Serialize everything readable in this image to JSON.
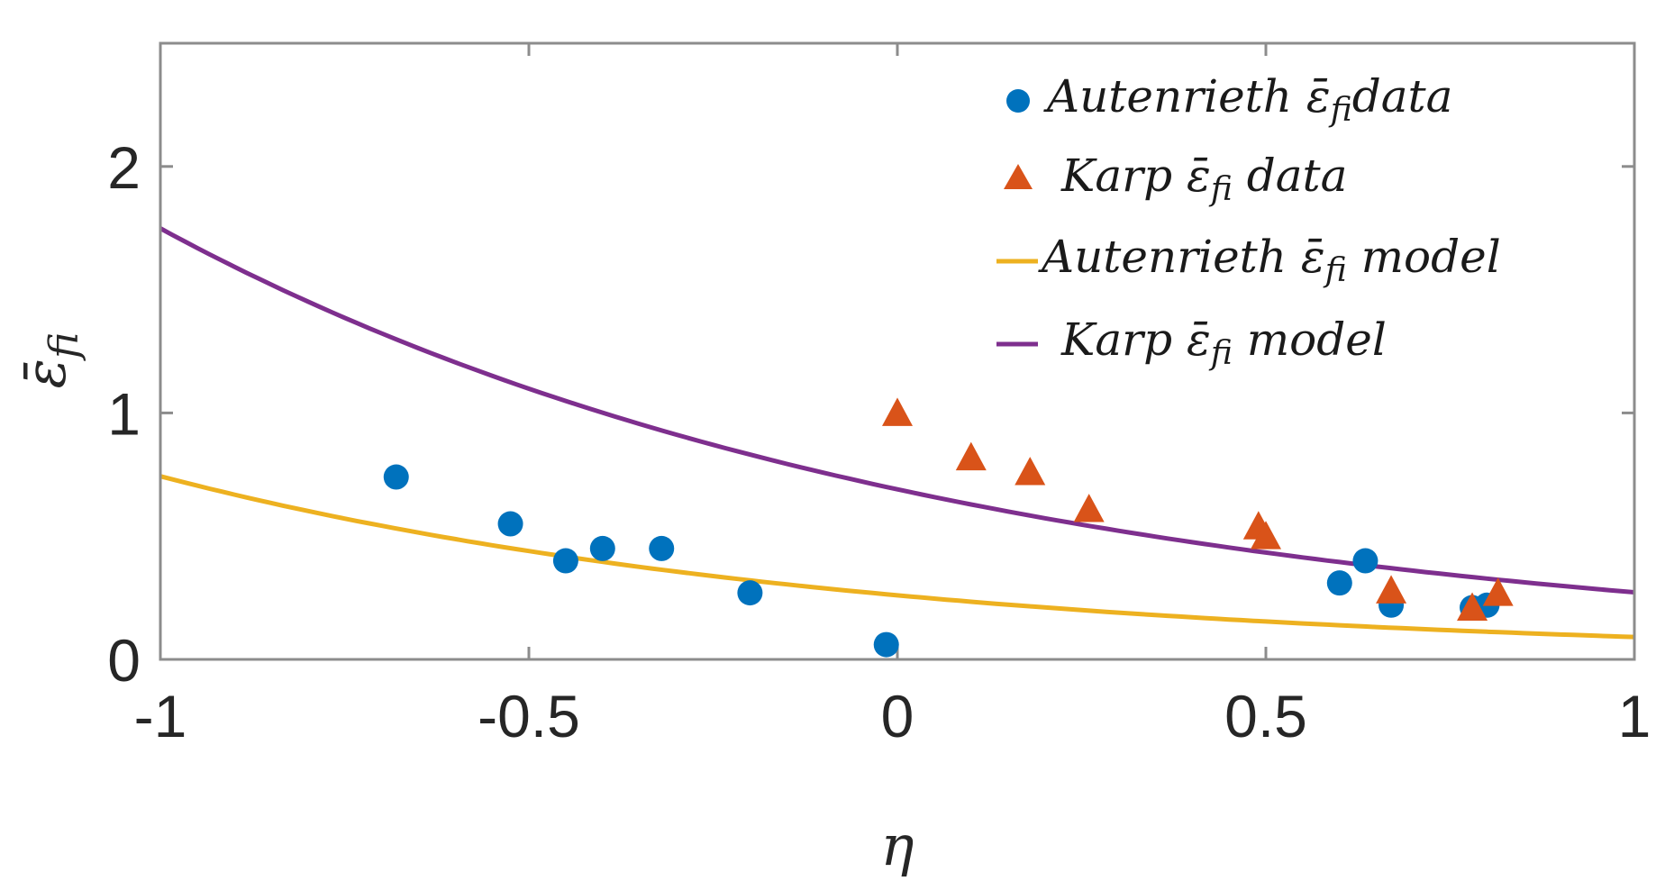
{
  "chart_data": {
    "type": "scatter",
    "title": "",
    "xlabel": "η",
    "ylabel": "ε̄fi",
    "xlim": [
      -1,
      1
    ],
    "ylim": [
      0,
      2.5
    ],
    "xticks": [
      -1,
      -0.5,
      0,
      0.5,
      1
    ],
    "xtick_labels": [
      "-1",
      "-0.5",
      "0",
      "0.5",
      "1"
    ],
    "yticks": [
      0,
      1,
      2
    ],
    "ytick_labels": [
      "0",
      "1",
      "2"
    ],
    "grid": false,
    "legend_position": "top-right",
    "series": [
      {
        "name": "Autenrieth ε̄fi data",
        "kind": "scatter",
        "marker": "circle",
        "color": "#0072BD",
        "points": [
          [
            -0.68,
            0.74
          ],
          [
            -0.525,
            0.55
          ],
          [
            -0.45,
            0.4
          ],
          [
            -0.4,
            0.45
          ],
          [
            -0.32,
            0.45
          ],
          [
            -0.2,
            0.27
          ],
          [
            -0.015,
            0.06
          ],
          [
            0.6,
            0.31
          ],
          [
            0.635,
            0.4
          ],
          [
            0.67,
            0.22
          ],
          [
            0.78,
            0.21
          ],
          [
            0.8,
            0.22
          ]
        ]
      },
      {
        "name": "Karp ε̄fi data",
        "kind": "scatter",
        "marker": "triangle",
        "color": "#D95319",
        "points": [
          [
            0.0,
            1.0
          ],
          [
            0.1,
            0.82
          ],
          [
            0.18,
            0.76
          ],
          [
            0.26,
            0.61
          ],
          [
            0.49,
            0.54
          ],
          [
            0.5,
            0.5
          ],
          [
            0.67,
            0.28
          ],
          [
            0.78,
            0.21
          ],
          [
            0.815,
            0.27
          ]
        ]
      },
      {
        "name": "Autenrieth ε̄fi model",
        "kind": "line",
        "color": "#EDB120",
        "model": "exp",
        "a": 0.26,
        "b": 1.05,
        "x_range": [
          -1,
          1
        ]
      },
      {
        "name": "Karp ε̄fi model",
        "kind": "line",
        "color": "#7E2F8E",
        "model": "exp",
        "a": 0.69,
        "b": 0.93,
        "x_range": [
          -1,
          1
        ]
      }
    ]
  },
  "legend": {
    "entries": [
      {
        "pre": "Autenrieth ",
        "sym": "ε̄",
        "sub": "fi",
        "post": "data"
      },
      {
        "pre": "Karp ",
        "sym": "ε̄",
        "sub": "fi",
        "post": " data"
      },
      {
        "pre": "Autenrieth ",
        "sym": "ε̄",
        "sub": "fi",
        "post": " model"
      },
      {
        "pre": "Karp ",
        "sym": "ε̄",
        "sub": "fi",
        "post": " model"
      }
    ]
  },
  "axes": {
    "x_label": "η",
    "y_sym": "ε̄",
    "y_sub": "fi"
  }
}
